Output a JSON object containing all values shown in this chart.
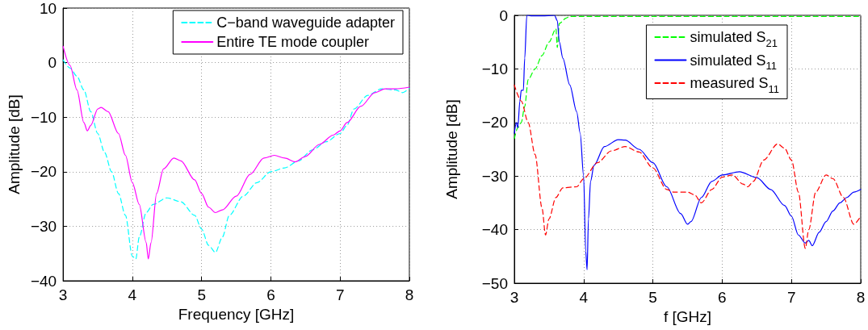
{
  "chart_data": [
    {
      "type": "line",
      "xlabel": "Frequency [GHz]",
      "ylabel": "Amplitude [dB]",
      "xlim": [
        3,
        8
      ],
      "xticks": [
        3,
        4,
        5,
        6,
        7,
        8
      ],
      "ylim": [
        -40,
        10
      ],
      "yticks": [
        -40,
        -30,
        -20,
        -10,
        0,
        10
      ],
      "grid": true,
      "legend": "top right",
      "marker": "none",
      "series": [
        {
          "name": "C−band waveguide adapter",
          "color": "#00ffff",
          "line_style": "dashed",
          "x": [
            3.0,
            3.1,
            3.2,
            3.3,
            3.4,
            3.5,
            3.6,
            3.7,
            3.8,
            3.9,
            4.0,
            4.05,
            4.1,
            4.2,
            4.3,
            4.5,
            4.7,
            4.9,
            5.0,
            5.1,
            5.2,
            5.3,
            5.4,
            5.6,
            5.8,
            6.0,
            6.2,
            6.4,
            6.6,
            6.8,
            7.0,
            7.1,
            7.2,
            7.4,
            7.6,
            7.8,
            7.9,
            8.0
          ],
          "values": [
            0.5,
            -1,
            -2.5,
            -5,
            -9,
            -13,
            -16.5,
            -20,
            -24,
            -28,
            -35.5,
            -36,
            -32,
            -27.5,
            -26,
            -24.8,
            -25.5,
            -28,
            -30.5,
            -33.5,
            -34.8,
            -32,
            -28,
            -24.5,
            -22,
            -20,
            -19.3,
            -18,
            -16,
            -14.5,
            -13,
            -11.5,
            -8.5,
            -6,
            -4.8,
            -5,
            -5.5,
            -4.7
          ]
        },
        {
          "name": "Entire TE mode coupler",
          "color": "#ff00ff",
          "line_style": "solid",
          "x": [
            3.0,
            3.1,
            3.2,
            3.3,
            3.35,
            3.4,
            3.5,
            3.55,
            3.65,
            3.8,
            3.9,
            4.0,
            4.1,
            4.2,
            4.23,
            4.27,
            4.35,
            4.45,
            4.6,
            4.7,
            4.9,
            5.0,
            5.1,
            5.2,
            5.3,
            5.5,
            5.7,
            5.9,
            6.05,
            6.2,
            6.35,
            6.5,
            6.7,
            6.9,
            7.0,
            7.1,
            7.3,
            7.5,
            7.65,
            7.8,
            8.0
          ],
          "values": [
            3,
            -0.5,
            -5,
            -11,
            -12.5,
            -11.5,
            -8.5,
            -8.2,
            -9,
            -13,
            -17,
            -22,
            -26,
            -33,
            -36,
            -33,
            -24,
            -19.5,
            -17.5,
            -18,
            -21.5,
            -24,
            -26.5,
            -27.5,
            -27,
            -24.5,
            -20.5,
            -17.5,
            -17,
            -17.5,
            -18.2,
            -17.2,
            -15,
            -13.3,
            -12.5,
            -11,
            -8,
            -5.5,
            -4.8,
            -4.8,
            -4.5
          ]
        }
      ]
    },
    {
      "type": "line",
      "xlabel": "f [GHz]",
      "ylabel": "Amplitude [dB]",
      "xlim": [
        3,
        8
      ],
      "xticks": [
        3,
        4,
        5,
        6,
        7,
        8
      ],
      "ylim": [
        -50,
        0
      ],
      "yticks": [
        -50,
        -40,
        -30,
        -20,
        -10,
        0
      ],
      "grid": true,
      "legend": "top right",
      "marker": "none",
      "series": [
        {
          "name": "simulated S$_{21}$",
          "color": "#00ff00",
          "line_style": "dashed",
          "x": [
            3.0,
            3.05,
            3.1,
            3.15,
            3.2,
            3.3,
            3.4,
            3.5,
            3.6,
            3.62,
            3.65,
            3.75,
            3.8,
            4.0,
            5.0,
            6.0,
            7.0,
            8.0
          ],
          "values": [
            -23,
            -21,
            -20,
            -17,
            -12,
            -10,
            -7.5,
            -5,
            -2.5,
            -6,
            -1.5,
            -0.5,
            -0.2,
            -0.2,
            -0.2,
            -0.2,
            -0.2,
            -0.2
          ]
        },
        {
          "name": "simulated S$_{11}$",
          "color": "#0000ff",
          "line_style": "solid",
          "x": [
            3.0,
            3.03,
            3.05,
            3.08,
            3.1,
            3.13,
            3.15,
            3.18,
            3.2,
            3.25,
            3.4,
            3.58,
            3.62,
            3.65,
            3.7,
            3.8,
            3.9,
            3.95,
            4.0,
            4.03,
            4.05,
            4.07,
            4.1,
            4.15,
            4.3,
            4.5,
            4.6,
            4.8,
            5.0,
            5.2,
            5.4,
            5.5,
            5.55,
            5.7,
            5.85,
            6.0,
            6.25,
            6.5,
            6.7,
            6.9,
            7.0,
            7.1,
            7.2,
            7.25,
            7.3,
            7.4,
            7.5,
            7.6,
            7.7,
            7.8,
            7.9,
            8.0
          ],
          "values": [
            -22,
            -20,
            -21,
            -16,
            -14,
            -14,
            -8,
            0,
            0,
            -0.1,
            -0.1,
            0,
            -1,
            -5,
            -8,
            -13,
            -18,
            -22,
            -30,
            -44,
            -47.5,
            -38,
            -31,
            -28,
            -24.5,
            -23.2,
            -23.3,
            -25,
            -27.5,
            -32,
            -37,
            -39,
            -38.5,
            -34,
            -31,
            -29.8,
            -29.2,
            -30.3,
            -32.5,
            -35.5,
            -37.5,
            -41,
            -42.5,
            -42,
            -43,
            -40.5,
            -38.5,
            -36.5,
            -35,
            -34,
            -33,
            -32.5
          ]
        },
        {
          "name": "measured S$_{11}$",
          "color": "#ff0000",
          "line_style": "dashed",
          "x": [
            3.0,
            3.1,
            3.2,
            3.3,
            3.4,
            3.45,
            3.5,
            3.6,
            3.7,
            3.9,
            4.0,
            4.2,
            4.4,
            4.6,
            4.8,
            5.0,
            5.2,
            5.3,
            5.5,
            5.6,
            5.7,
            5.85,
            6.0,
            6.15,
            6.3,
            6.37,
            6.45,
            6.6,
            6.8,
            6.9,
            7.0,
            7.1,
            7.2,
            7.25,
            7.35,
            7.5,
            7.6,
            7.75,
            7.9,
            8.0
          ],
          "values": [
            -13,
            -16,
            -20,
            -26,
            -36,
            -41,
            -38,
            -34,
            -32.2,
            -32,
            -30.5,
            -27.5,
            -25.3,
            -24.5,
            -25.5,
            -28.5,
            -32.5,
            -33,
            -33,
            -33.5,
            -35,
            -32.5,
            -30.2,
            -29.8,
            -31.5,
            -32,
            -31,
            -27,
            -24,
            -24.8,
            -27,
            -33,
            -43.5,
            -40,
            -33,
            -29.8,
            -30.5,
            -34,
            -39,
            -37.5
          ]
        }
      ]
    }
  ]
}
